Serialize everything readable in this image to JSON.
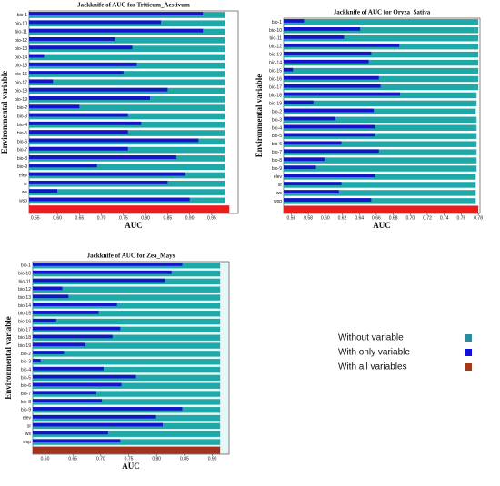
{
  "chart_data": [
    {
      "type": "bar",
      "title": "Jackknife of AUC for Triticum_Aestivum",
      "x_label": "AUC",
      "y_label": "Environmental variable",
      "categories": [
        "bio-1",
        "bio-10",
        "bio-11",
        "bio-12",
        "bio-13",
        "bio-14",
        "bio-15",
        "bio-16",
        "bio-17",
        "bio-18",
        "bio-19",
        "bio-2",
        "bio-3",
        "bio-4",
        "bio-5",
        "bio-6",
        "bio-7",
        "bio-8",
        "bio-9",
        "elev",
        "sr",
        "ws",
        "wsp",
        null
      ],
      "series": [
        {
          "name": "Without variable",
          "color": "#1fa8a8",
          "values": [
            0.98,
            0.98,
            0.98,
            0.98,
            0.98,
            0.98,
            0.98,
            0.98,
            0.98,
            0.98,
            0.98,
            0.98,
            0.98,
            0.98,
            0.98,
            0.98,
            0.98,
            0.98,
            0.98,
            0.98,
            0.98,
            0.98,
            0.98,
            null
          ]
        },
        {
          "name": "With only variable",
          "color": "#1414c8",
          "values": [
            0.93,
            0.835,
            0.93,
            0.73,
            0.77,
            0.57,
            0.78,
            0.75,
            0.59,
            0.85,
            0.81,
            0.65,
            0.76,
            0.79,
            0.76,
            0.92,
            0.76,
            0.87,
            0.69,
            0.89,
            0.85,
            0.6,
            0.9,
            null
          ]
        },
        {
          "name": "With all variables",
          "color": "#ee1c1c",
          "values": [
            null,
            null,
            null,
            null,
            null,
            null,
            null,
            null,
            null,
            null,
            null,
            null,
            null,
            null,
            null,
            null,
            null,
            null,
            null,
            null,
            null,
            null,
            null,
            0.99
          ]
        }
      ],
      "xlim": [
        0.536,
        1.01
      ],
      "xticks": [
        0.55,
        {
          "value": 0.6,
          "label": "0.60"
        },
        0.65,
        {
          "value": 0.7,
          "label": "0.70"
        },
        0.75,
        {
          "value": 0.8,
          "label": "0.80"
        },
        0.85,
        {
          "value": 0.9,
          "label": "0.90"
        },
        0.95
      ]
    },
    {
      "type": "bar",
      "title": "Jackknife of AUC for Oryza_Sativa",
      "x_label": "AUC",
      "y_label": "Environmental variable",
      "categories": [
        "bio-1",
        "bio-10",
        "bio-11",
        "bio-12",
        "bio-13",
        "bio-14",
        "bio-15",
        "bio-16",
        "bio-17",
        "bio-18",
        "bio-19",
        "bio-2",
        "bio-3",
        "bio-4",
        "bio-5",
        "bio-6",
        "bio-7",
        "bio-8",
        "bio-9",
        "elev",
        "sr",
        "ws",
        "wsp",
        null
      ],
      "series": [
        {
          "name": "Without variable",
          "color": "#1fa8a8",
          "values": [
            0.78,
            0.78,
            0.78,
            0.78,
            0.78,
            0.78,
            0.78,
            0.78,
            0.78,
            0.778,
            0.778,
            0.777,
            0.778,
            0.778,
            0.778,
            0.778,
            0.778,
            0.778,
            0.778,
            0.777,
            0.777,
            0.777,
            0.777,
            null
          ]
        },
        {
          "name": "With only variable",
          "color": "#1414c8",
          "values": [
            0.575,
            0.641,
            0.622,
            0.687,
            0.654,
            0.651,
            0.562,
            0.663,
            0.665,
            0.688,
            0.586,
            0.657,
            0.612,
            0.658,
            0.658,
            0.619,
            0.663,
            0.599,
            0.589,
            0.658,
            0.619,
            0.616,
            0.654,
            null
          ]
        },
        {
          "name": "With all variables",
          "color": "#ee1c1c",
          "values": [
            null,
            null,
            null,
            null,
            null,
            null,
            null,
            null,
            null,
            null,
            null,
            null,
            null,
            null,
            null,
            null,
            null,
            null,
            null,
            null,
            null,
            null,
            null,
            0.78
          ]
        }
      ],
      "xlim": [
        0.551,
        0.782
      ],
      "xticks": [
        0.56,
        0.58,
        {
          "value": 0.6,
          "label": "0.60"
        },
        0.62,
        0.64,
        0.66,
        0.68,
        {
          "value": 0.7,
          "label": "0.70"
        },
        0.72,
        0.74,
        0.76,
        0.78
      ]
    },
    {
      "type": "bar",
      "title": "Jackknife of AUC for Zea_Mays",
      "x_label": "AUC",
      "y_label": "Environmental variable",
      "categories": [
        "bio-1",
        "bio-10",
        "bio-11",
        "bio-12",
        "bio-13",
        "bio-14",
        "bio-15",
        "bio-16",
        "bio-17",
        "bio-18",
        "bio-19",
        "bio-2",
        "bio-3",
        "bio-4",
        "bio-5",
        "bio-6",
        "bio-7",
        "bio-8",
        "bio-9",
        "elev",
        "sr",
        "ws",
        "wsp",
        null
      ],
      "series": [
        {
          "name": "Without variable",
          "color": "#1fa8a8",
          "values": [
            0.914,
            0.914,
            0.914,
            0.914,
            0.914,
            0.914,
            0.914,
            0.914,
            0.914,
            0.914,
            0.914,
            0.914,
            0.914,
            0.914,
            0.914,
            0.914,
            0.914,
            0.914,
            0.914,
            0.914,
            0.914,
            0.914,
            0.914,
            null
          ]
        },
        {
          "name": "With only variable",
          "color": "#1414c8",
          "values": [
            0.846,
            0.827,
            0.815,
            0.631,
            0.642,
            0.729,
            0.696,
            0.62,
            0.735,
            0.721,
            0.671,
            0.634,
            0.592,
            0.705,
            0.763,
            0.737,
            0.692,
            0.702,
            0.846,
            0.799,
            0.811,
            0.713,
            0.735,
            null
          ]
        },
        {
          "name": "With all variables",
          "color": "#a0321e",
          "values": [
            null,
            null,
            null,
            null,
            null,
            null,
            null,
            null,
            null,
            null,
            null,
            null,
            null,
            null,
            null,
            null,
            null,
            null,
            null,
            null,
            null,
            null,
            null,
            0.914
          ]
        }
      ],
      "xlim": [
        0.578,
        0.93
      ],
      "xticks": [
        {
          "value": 0.6,
          "label": "0.60"
        },
        0.65,
        {
          "value": 0.7,
          "label": "0.70"
        },
        0.75,
        {
          "value": 0.8,
          "label": "0.80"
        },
        0.85,
        {
          "value": 0.9,
          "label": "0.90"
        }
      ]
    }
  ]
}
